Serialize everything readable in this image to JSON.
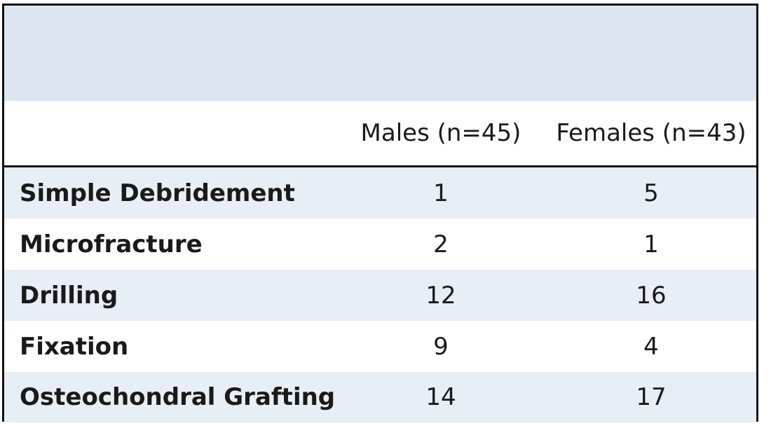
{
  "colors": {
    "title_band": "#dce6f1",
    "stripe": "#e8eef6",
    "plain": "#ffffff",
    "border": "#111111"
  },
  "table": {
    "headers": {
      "label": "",
      "males": "Males (n=45)",
      "females": "Females (n=43)"
    },
    "rows": [
      {
        "label": "Simple Debridement",
        "males": "1",
        "females": "5",
        "striped": true
      },
      {
        "label": "Microfracture",
        "males": "2",
        "females": "1",
        "striped": false
      },
      {
        "label": "Drilling",
        "males": "12",
        "females": "16",
        "striped": true
      },
      {
        "label": "Fixation",
        "males": "9",
        "females": "4",
        "striped": false
      },
      {
        "label": "Osteochondral Grafting",
        "males": "14",
        "females": "17",
        "striped": true
      }
    ]
  }
}
